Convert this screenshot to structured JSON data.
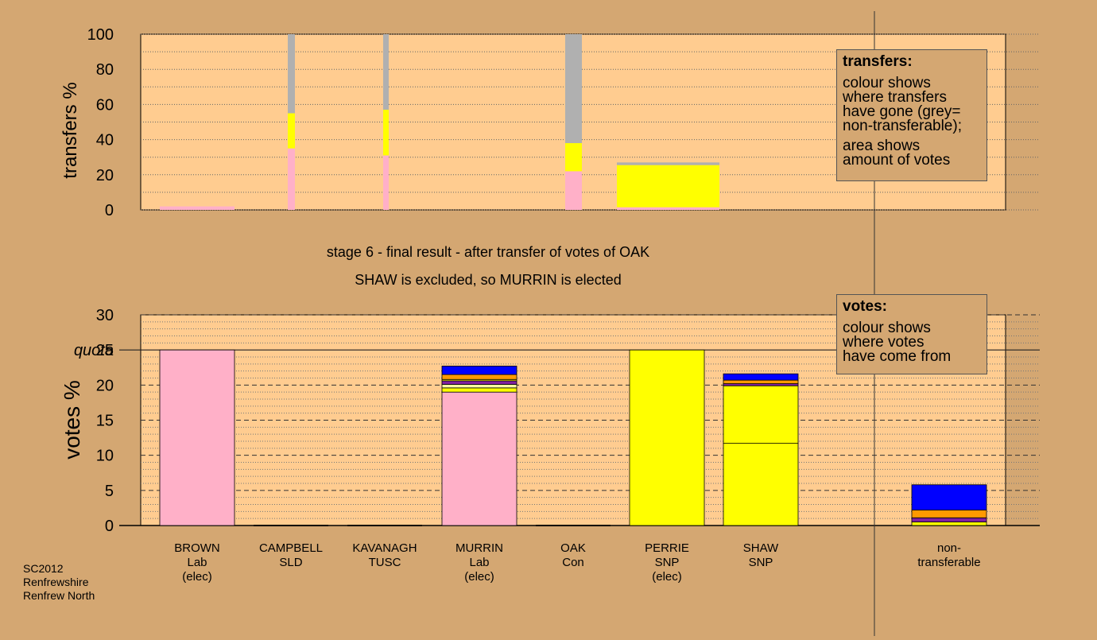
{
  "chart_data": [
    {
      "type": "bar",
      "stacked": true,
      "ylabel": "transfers %",
      "ylim": [
        0,
        100
      ],
      "yticks": [
        0,
        20,
        40,
        60,
        80,
        100
      ],
      "note": "bar width encodes amount of votes transferred",
      "series_colors": {
        "Lab": "#ffb0c8",
        "SNP": "#ffff00",
        "non-transferable": "#b0b0b0"
      },
      "bars": [
        {
          "candidate": "BROWN",
          "segments": [
            {
              "series": "Lab",
              "value": 2
            }
          ]
        },
        {
          "candidate": "CAMPBELL",
          "segments": [
            {
              "series": "Lab",
              "value": 35
            },
            {
              "series": "SNP",
              "value": 20
            },
            {
              "series": "non-transferable",
              "value": 45
            }
          ]
        },
        {
          "candidate": "KAVANAGH",
          "segments": [
            {
              "series": "Lab",
              "value": 31
            },
            {
              "series": "SNP",
              "value": 26
            },
            {
              "series": "non-transferable",
              "value": 43
            }
          ]
        },
        {
          "candidate": "OAK",
          "segments": [
            {
              "series": "Lab",
              "value": 22
            },
            {
              "series": "SNP",
              "value": 16
            },
            {
              "series": "non-transferable",
              "value": 62
            }
          ]
        },
        {
          "candidate": "PERRIE",
          "segments": [
            {
              "series": "Lab",
              "value": 1.5
            },
            {
              "series": "SNP",
              "value": 24
            },
            {
              "series": "non-transferable",
              "value": 1.5
            }
          ]
        }
      ]
    },
    {
      "type": "bar",
      "stacked": true,
      "title": "stage 6 - final result - after transfer of votes of OAK",
      "subtitle": "SHAW is excluded, so MURRIN is elected",
      "ylabel": "votes %",
      "ylim": [
        0,
        30
      ],
      "yticks": [
        0,
        5,
        10,
        15,
        20,
        25,
        30
      ],
      "quota": 25,
      "quota_label": "quota",
      "series_colors": {
        "Lab": "#ffb0c8",
        "SNP": "#ffff00",
        "TUSC": "#ffffa0",
        "SLD": "#ff9900",
        "Con": "#0000ff",
        "Other": "#8020a0"
      },
      "bars": [
        {
          "name": "BROWN",
          "party": "Lab",
          "status": "(elec)",
          "segments": [
            {
              "series": "Lab",
              "value": 25
            }
          ]
        },
        {
          "name": "CAMPBELL",
          "party": "SLD",
          "status": "",
          "segments": []
        },
        {
          "name": "KAVANAGH",
          "party": "TUSC",
          "status": "",
          "segments": []
        },
        {
          "name": "MURRIN",
          "party": "Lab",
          "status": "(elec)",
          "segments": [
            {
              "series": "Lab",
              "value": 19
            },
            {
              "series": "SNP",
              "value": 0.6
            },
            {
              "series": "TUSC",
              "value": 0.5
            },
            {
              "series": "Other",
              "value": 0.5
            },
            {
              "series": "SNP",
              "value": 0.2
            },
            {
              "series": "SLD",
              "value": 0.7
            },
            {
              "series": "Con",
              "value": 1.2
            }
          ]
        },
        {
          "name": "OAK",
          "party": "Con",
          "status": "",
          "segments": []
        },
        {
          "name": "PERRIE",
          "party": "SNP",
          "status": "(elec)",
          "segments": [
            {
              "series": "SNP",
              "value": 25
            }
          ]
        },
        {
          "name": "SHAW",
          "party": "SNP",
          "status": "",
          "segments": [
            {
              "series": "SNP",
              "value": 11.7
            },
            {
              "series": "SNP",
              "value": 8.2
            },
            {
              "series": "Other",
              "value": 0.3
            },
            {
              "series": "SLD",
              "value": 0.5
            },
            {
              "series": "Con",
              "value": 0.9
            }
          ]
        },
        {
          "name": "non-",
          "party": "transferable",
          "status": "",
          "segments": [
            {
              "series": "SNP",
              "value": 0.5
            },
            {
              "series": "Other",
              "value": 0.6
            },
            {
              "series": "SLD",
              "value": 1.1
            },
            {
              "series": "Con",
              "value": 3.6
            }
          ]
        }
      ]
    }
  ],
  "legend_transfers": {
    "heading": "transfers:",
    "lines": [
      "colour shows",
      "where transfers",
      "have gone (grey=",
      "non-transferable);",
      "area shows",
      "amount of votes"
    ]
  },
  "legend_votes": {
    "heading": "votes:",
    "lines": [
      "colour shows",
      "where votes",
      "have come from"
    ]
  },
  "footer": {
    "line1": "SC2012",
    "line2": "Renfrewshire",
    "line3": "Renfrew North"
  },
  "colors": {
    "background": "#d4a772",
    "plot_area": "#ffcc90"
  }
}
